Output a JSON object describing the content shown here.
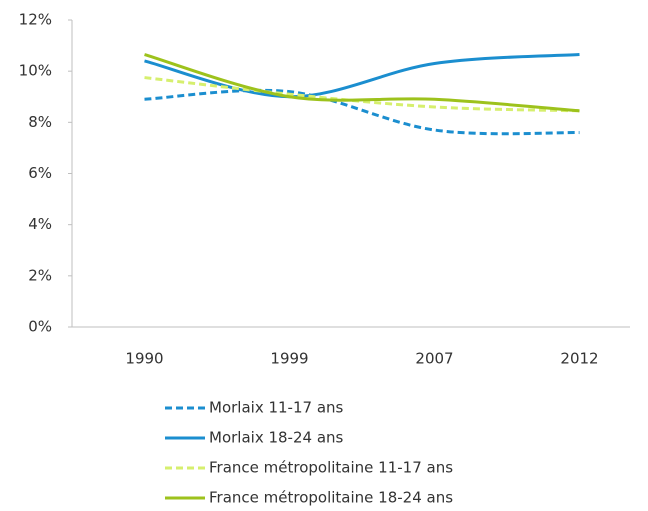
{
  "chart_data": {
    "type": "line",
    "categories": [
      "1990",
      "1999",
      "2007",
      "2012"
    ],
    "series": [
      {
        "name": "Morlaix 11-17 ans",
        "color": "#1b8ecf",
        "dashed": true,
        "values": [
          8.9,
          9.2,
          7.7,
          7.6
        ]
      },
      {
        "name": "Morlaix 18-24 ans",
        "color": "#1b8ecf",
        "dashed": false,
        "values": [
          10.4,
          9.0,
          10.3,
          10.65
        ]
      },
      {
        "name": "France métropolitaine 11-17 ans",
        "color": "#d6ef6e",
        "dashed": true,
        "values": [
          9.75,
          9.1,
          8.6,
          8.45
        ]
      },
      {
        "name": "France métropolitaine 18-24 ans",
        "color": "#9dc21c",
        "dashed": false,
        "values": [
          10.65,
          9.0,
          8.9,
          8.45
        ]
      }
    ],
    "ylim": [
      0,
      12
    ],
    "yticks": [
      {
        "value": 0,
        "label": "0%"
      },
      {
        "value": 2,
        "label": "2%"
      },
      {
        "value": 4,
        "label": "4%"
      },
      {
        "value": 6,
        "label": "6%"
      },
      {
        "value": 8,
        "label": "8%"
      },
      {
        "value": 10,
        "label": "10%"
      },
      {
        "value": 12,
        "label": "12%"
      }
    ],
    "smooth": true,
    "grid": false,
    "legend": "bottom"
  }
}
